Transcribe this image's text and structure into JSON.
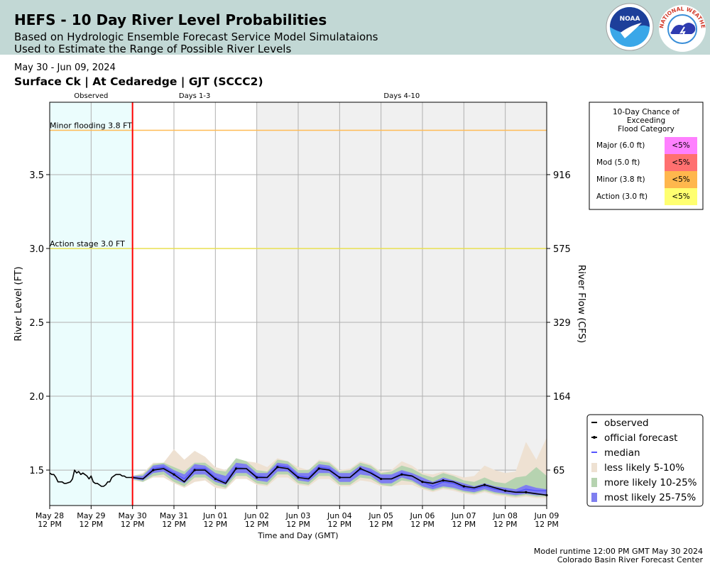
{
  "header": {
    "title": "HEFS - 10 Day River Level Probabilities",
    "subtitle_line1": "Based on Hydrologic Ensemble Forecast Service Model Simulataions",
    "subtitle_line2": "Used to Estimate the Range of Possible River Levels",
    "noaa_logo_text": "NOAA",
    "nws_logo_text": "NATIONAL WEATHER SERVICE"
  },
  "period": "May 30 - Jun 09, 2024",
  "station": "Surface Ck | At Cedaredge | GJT (SCCC2)",
  "footer": {
    "line1": "Model runtime 12:00 PM GMT May 30 2024",
    "line2": "Colorado Basin River Forecast Center"
  },
  "chart_data": {
    "type": "line",
    "xlabel": "Time and Day (GMT)",
    "ylabel": "River Level (FT)",
    "y2label": "River Flow (CFS)",
    "ylim": [
      1.26,
      3.99
    ],
    "xlim_days": [
      0,
      12
    ],
    "period_labels": [
      {
        "text": "Observed",
        "at_day": 1.0
      },
      {
        "text": "Days 1-3",
        "at_day": 3.5
      },
      {
        "text": "Days 4-10",
        "at_day": 8.5
      }
    ],
    "regions": {
      "observed_end_day": 2,
      "days_1_3_end_day": 5
    },
    "forecast_start_day": 2,
    "yticks": [
      {
        "stage": 1.5,
        "label": "1.5",
        "flow": "65"
      },
      {
        "stage": 2.0,
        "label": "2.0",
        "flow": "164"
      },
      {
        "stage": 2.5,
        "label": "2.5",
        "flow": "329"
      },
      {
        "stage": 3.0,
        "label": "3.0",
        "flow": "575"
      },
      {
        "stage": 3.5,
        "label": "3.5",
        "flow": "916"
      }
    ],
    "xticks": [
      {
        "day": 0,
        "l1": "May 28",
        "l2": "12 PM"
      },
      {
        "day": 1,
        "l1": "May 29",
        "l2": "12 PM"
      },
      {
        "day": 2,
        "l1": "May 30",
        "l2": "12 PM"
      },
      {
        "day": 3,
        "l1": "May 31",
        "l2": "12 PM"
      },
      {
        "day": 4,
        "l1": "Jun 01",
        "l2": "12 PM"
      },
      {
        "day": 5,
        "l1": "Jun 02",
        "l2": "12 PM"
      },
      {
        "day": 6,
        "l1": "Jun 03",
        "l2": "12 PM"
      },
      {
        "day": 7,
        "l1": "Jun 04",
        "l2": "12 PM"
      },
      {
        "day": 8,
        "l1": "Jun 05",
        "l2": "12 PM"
      },
      {
        "day": 9,
        "l1": "Jun 06",
        "l2": "12 PM"
      },
      {
        "day": 10,
        "l1": "Jun 07",
        "l2": "12 PM"
      },
      {
        "day": 11,
        "l1": "Jun 08",
        "l2": "12 PM"
      },
      {
        "day": 12,
        "l1": "Jun 09",
        "l2": "12 PM"
      }
    ],
    "flood_stages": [
      {
        "name": "minor",
        "stage": 3.8,
        "label": "Minor flooding 3.8 FT",
        "color": "#ffbb55"
      },
      {
        "name": "action",
        "stage": 3.0,
        "label": "Action stage 3.0 FT",
        "color": "#e8e050"
      }
    ],
    "observed": {
      "x": [
        0.0,
        0.05,
        0.1,
        0.15,
        0.2,
        0.25,
        0.3,
        0.35,
        0.4,
        0.5,
        0.55,
        0.6,
        0.65,
        0.7,
        0.75,
        0.8,
        0.85,
        0.9,
        0.95,
        1.0,
        1.05,
        1.1,
        1.15,
        1.2,
        1.25,
        1.3,
        1.35,
        1.4,
        1.45,
        1.5,
        1.55,
        1.6,
        1.65,
        1.7,
        1.75,
        1.8,
        1.85,
        1.9,
        1.95,
        2.0
      ],
      "y": [
        1.48,
        1.47,
        1.47,
        1.45,
        1.42,
        1.42,
        1.42,
        1.41,
        1.41,
        1.42,
        1.44,
        1.5,
        1.48,
        1.49,
        1.47,
        1.48,
        1.47,
        1.46,
        1.44,
        1.46,
        1.42,
        1.41,
        1.41,
        1.4,
        1.39,
        1.39,
        1.4,
        1.42,
        1.42,
        1.45,
        1.46,
        1.47,
        1.47,
        1.47,
        1.46,
        1.46,
        1.45,
        1.45,
        1.45,
        1.45
      ]
    },
    "forecast_x": [
      2.0,
      2.25,
      2.5,
      2.75,
      3.0,
      3.25,
      3.5,
      3.75,
      4.0,
      4.25,
      4.5,
      4.75,
      5.0,
      5.25,
      5.5,
      5.75,
      6.0,
      6.25,
      6.5,
      6.75,
      7.0,
      7.25,
      7.5,
      7.75,
      8.0,
      8.25,
      8.5,
      8.75,
      9.0,
      9.25,
      9.5,
      9.75,
      10.0,
      10.25,
      10.5,
      10.75,
      11.0,
      11.25,
      11.5,
      11.75,
      12.0
    ],
    "official_forecast": [
      1.45,
      1.44,
      1.5,
      1.51,
      1.47,
      1.42,
      1.5,
      1.5,
      1.44,
      1.41,
      1.51,
      1.51,
      1.45,
      1.45,
      1.52,
      1.51,
      1.45,
      1.44,
      1.51,
      1.5,
      1.45,
      1.45,
      1.51,
      1.48,
      1.44,
      1.44,
      1.47,
      1.46,
      1.42,
      1.41,
      1.43,
      1.42,
      1.39,
      1.38,
      1.4,
      1.38,
      1.36,
      1.35,
      1.35,
      1.34,
      1.33
    ],
    "median": [
      1.45,
      1.44,
      1.51,
      1.52,
      1.48,
      1.44,
      1.51,
      1.51,
      1.45,
      1.42,
      1.52,
      1.51,
      1.46,
      1.45,
      1.53,
      1.52,
      1.46,
      1.45,
      1.52,
      1.51,
      1.45,
      1.45,
      1.5,
      1.49,
      1.44,
      1.44,
      1.48,
      1.46,
      1.42,
      1.39,
      1.42,
      1.41,
      1.38,
      1.37,
      1.39,
      1.37,
      1.36,
      1.35,
      1.37,
      1.36,
      1.36
    ],
    "band_25_75": {
      "low": [
        1.44,
        1.43,
        1.48,
        1.49,
        1.44,
        1.41,
        1.47,
        1.47,
        1.42,
        1.4,
        1.48,
        1.48,
        1.43,
        1.42,
        1.49,
        1.49,
        1.43,
        1.42,
        1.48,
        1.48,
        1.42,
        1.42,
        1.47,
        1.46,
        1.41,
        1.41,
        1.45,
        1.43,
        1.39,
        1.37,
        1.39,
        1.38,
        1.36,
        1.35,
        1.37,
        1.35,
        1.34,
        1.33,
        1.34,
        1.33,
        1.33
      ],
      "high": [
        1.46,
        1.46,
        1.53,
        1.54,
        1.5,
        1.47,
        1.54,
        1.53,
        1.48,
        1.46,
        1.55,
        1.54,
        1.48,
        1.48,
        1.55,
        1.54,
        1.48,
        1.48,
        1.54,
        1.53,
        1.48,
        1.48,
        1.53,
        1.51,
        1.47,
        1.47,
        1.5,
        1.48,
        1.45,
        1.42,
        1.45,
        1.43,
        1.41,
        1.39,
        1.41,
        1.39,
        1.38,
        1.37,
        1.4,
        1.38,
        1.37
      ]
    },
    "band_10_25": {
      "low": [
        1.44,
        1.42,
        1.46,
        1.47,
        1.42,
        1.39,
        1.45,
        1.45,
        1.4,
        1.38,
        1.46,
        1.46,
        1.41,
        1.4,
        1.47,
        1.47,
        1.41,
        1.4,
        1.46,
        1.46,
        1.4,
        1.4,
        1.45,
        1.44,
        1.4,
        1.39,
        1.43,
        1.42,
        1.38,
        1.36,
        1.38,
        1.37,
        1.35,
        1.34,
        1.36,
        1.34,
        1.33,
        1.32,
        1.33,
        1.32,
        1.32
      ],
      "high": [
        1.46,
        1.47,
        1.54,
        1.55,
        1.52,
        1.49,
        1.55,
        1.55,
        1.5,
        1.49,
        1.58,
        1.56,
        1.5,
        1.49,
        1.57,
        1.56,
        1.5,
        1.5,
        1.56,
        1.55,
        1.49,
        1.5,
        1.55,
        1.53,
        1.48,
        1.49,
        1.53,
        1.51,
        1.47,
        1.45,
        1.48,
        1.46,
        1.43,
        1.42,
        1.45,
        1.42,
        1.41,
        1.45,
        1.46,
        1.52,
        1.46
      ]
    },
    "band_5_10": {
      "low": [
        1.43,
        1.42,
        1.45,
        1.45,
        1.41,
        1.38,
        1.42,
        1.43,
        1.38,
        1.37,
        1.44,
        1.44,
        1.4,
        1.39,
        1.45,
        1.45,
        1.4,
        1.39,
        1.44,
        1.44,
        1.39,
        1.39,
        1.43,
        1.42,
        1.39,
        1.39,
        1.4,
        1.4,
        1.37,
        1.35,
        1.37,
        1.36,
        1.34,
        1.33,
        1.35,
        1.33,
        1.32,
        1.31,
        1.32,
        1.31,
        1.31
      ],
      "high": [
        1.46,
        1.48,
        1.55,
        1.55,
        1.64,
        1.57,
        1.63,
        1.59,
        1.52,
        1.5,
        1.57,
        1.56,
        1.55,
        1.52,
        1.58,
        1.56,
        1.52,
        1.5,
        1.57,
        1.56,
        1.5,
        1.51,
        1.56,
        1.54,
        1.49,
        1.5,
        1.56,
        1.53,
        1.48,
        1.47,
        1.49,
        1.47,
        1.45,
        1.46,
        1.53,
        1.5,
        1.48,
        1.49,
        1.69,
        1.57,
        1.72
      ]
    },
    "legend": [
      {
        "key": "observed",
        "label": "observed"
      },
      {
        "key": "official",
        "label": "official forecast"
      },
      {
        "key": "median",
        "label": "median"
      },
      {
        "key": "b510",
        "label": "less likely 5-10%"
      },
      {
        "key": "b1025",
        "label": "more likely 10-25%"
      },
      {
        "key": "b2575",
        "label": "most likely 25-75%"
      }
    ],
    "colors": {
      "observed": "#000000",
      "official": "#000000",
      "median": "#5555ff",
      "b510": "#eee1d2",
      "b1025": "#b6d3b0",
      "b2575": "#7f7ff0",
      "observed_bg": "#ebfdfd",
      "days410_bg": "#f0f0f0",
      "forecast_start": "#ff0000",
      "grid": "#b0b0b0"
    },
    "category_table": {
      "title": [
        "10-Day Chance of",
        "Exceeding",
        "Flood Category"
      ],
      "rows": [
        {
          "label": "Major (6.0 ft)",
          "value": "<5%",
          "color": "#ff80ff"
        },
        {
          "label": "Mod (5.0 ft)",
          "value": "<5%",
          "color": "#ff7070"
        },
        {
          "label": "Minor (3.8 ft)",
          "value": "<5%",
          "color": "#ffb74d"
        },
        {
          "label": "Action (3.0 ft)",
          "value": "<5%",
          "color": "#ffff70"
        }
      ]
    }
  }
}
